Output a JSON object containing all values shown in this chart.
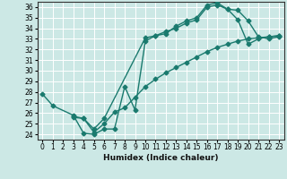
{
  "title": "",
  "xlabel": "Humidex (Indice chaleur)",
  "ylabel": "",
  "bg_color": "#cce8e5",
  "line_color": "#1a7a6e",
  "grid_color": "#ffffff",
  "xlim": [
    -0.5,
    23.5
  ],
  "ylim": [
    23.5,
    36.5
  ],
  "yticks": [
    24,
    25,
    26,
    27,
    28,
    29,
    30,
    31,
    32,
    33,
    34,
    35,
    36
  ],
  "xticks": [
    0,
    1,
    2,
    3,
    4,
    5,
    6,
    7,
    8,
    9,
    10,
    11,
    12,
    13,
    14,
    15,
    16,
    17,
    18,
    19,
    20,
    21,
    22,
    23
  ],
  "line1_x": [
    0,
    1,
    3,
    4,
    5,
    6,
    7,
    8,
    9,
    10,
    11,
    12,
    13,
    14,
    15,
    16,
    17,
    18,
    19,
    20,
    21,
    22,
    23
  ],
  "line1_y": [
    27.8,
    26.7,
    25.8,
    24.1,
    24.0,
    24.5,
    24.5,
    28.5,
    26.3,
    32.8,
    33.3,
    33.7,
    34.0,
    34.5,
    34.8,
    36.0,
    36.2,
    35.8,
    35.7,
    34.7,
    33.2,
    33.0,
    33.2
  ],
  "line2_x": [
    3,
    4,
    5,
    6,
    10,
    11,
    12,
    13,
    14,
    15,
    16,
    17,
    18,
    19,
    20,
    21,
    22,
    23
  ],
  "line2_y": [
    25.7,
    25.5,
    24.5,
    25.5,
    33.1,
    33.3,
    33.5,
    34.2,
    34.7,
    35.0,
    36.2,
    36.4,
    35.8,
    34.8,
    32.5,
    33.0,
    33.2,
    33.3
  ],
  "line3_x": [
    3,
    4,
    5,
    6,
    7,
    8,
    9,
    10,
    11,
    12,
    13,
    14,
    15,
    16,
    17,
    18,
    19,
    20,
    21,
    22,
    23
  ],
  "line3_y": [
    25.6,
    25.5,
    24.2,
    25.0,
    26.1,
    26.5,
    27.5,
    28.5,
    29.2,
    29.8,
    30.3,
    30.8,
    31.3,
    31.8,
    32.2,
    32.5,
    32.8,
    33.0,
    33.1,
    33.2,
    33.3
  ],
  "marker": "D",
  "markersize": 2.5,
  "linewidth": 1.0,
  "tick_fontsize": 5.5,
  "xlabel_fontsize": 6.5
}
